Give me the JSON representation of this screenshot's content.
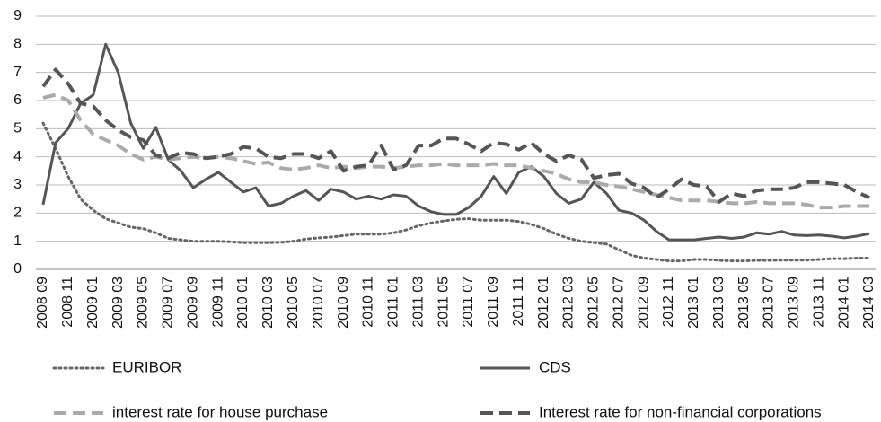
{
  "chart_data": {
    "type": "line",
    "categories": [
      "2008 09",
      null,
      "2008 11",
      null,
      "2009 01",
      null,
      "2009 03",
      null,
      "2009 05",
      null,
      "2009 07",
      null,
      "2009 09",
      null,
      "2009 11",
      null,
      "2010 01",
      null,
      "2010 03",
      null,
      "2010 05",
      null,
      "2010 07",
      null,
      "2010 09",
      null,
      "2010 11",
      null,
      "2011 01",
      null,
      "2011 03",
      null,
      "2011 05",
      null,
      "2011 07",
      null,
      "2011 09",
      null,
      "2011 11",
      null,
      "2012 01",
      null,
      "2012 03",
      null,
      "2012 05",
      null,
      "2012 07",
      null,
      "2012 09",
      null,
      "2012 11",
      null,
      "2013 01",
      null,
      "2013 03",
      null,
      "2013 05",
      null,
      "2013 07",
      null,
      "2013 09",
      null,
      "2013 11",
      null,
      "2014 01",
      null,
      "2014 03"
    ],
    "series": [
      {
        "name": "EURIBOR",
        "color": "#666666",
        "style": "dotted",
        "values": [
          5.2,
          4.3,
          3.3,
          2.5,
          2.1,
          1.8,
          1.65,
          1.5,
          1.45,
          1.3,
          1.1,
          1.05,
          1.0,
          1.0,
          1.0,
          0.98,
          0.95,
          0.95,
          0.95,
          0.96,
          1.0,
          1.08,
          1.12,
          1.15,
          1.2,
          1.25,
          1.25,
          1.25,
          1.3,
          1.4,
          1.55,
          1.65,
          1.72,
          1.78,
          1.8,
          1.75,
          1.75,
          1.75,
          1.7,
          1.6,
          1.45,
          1.25,
          1.1,
          1.0,
          0.95,
          0.9,
          0.7,
          0.5,
          0.4,
          0.35,
          0.3,
          0.3,
          0.35,
          0.35,
          0.32,
          0.3,
          0.3,
          0.32,
          0.32,
          0.33,
          0.33,
          0.33,
          0.35,
          0.38,
          0.38,
          0.4,
          0.4
        ]
      },
      {
        "name": "CDS",
        "color": "#555555",
        "style": "solid",
        "values": [
          2.3,
          4.5,
          5.0,
          5.9,
          6.2,
          8.0,
          7.0,
          5.2,
          4.3,
          5.05,
          3.9,
          3.5,
          2.9,
          3.2,
          3.45,
          3.1,
          2.75,
          2.9,
          2.25,
          2.35,
          2.6,
          2.8,
          2.45,
          2.85,
          2.75,
          2.5,
          2.6,
          2.5,
          2.65,
          2.6,
          2.25,
          2.05,
          1.95,
          1.95,
          2.2,
          2.6,
          3.3,
          2.7,
          3.45,
          3.65,
          3.3,
          2.7,
          2.35,
          2.5,
          3.1,
          2.7,
          2.1,
          2.0,
          1.75,
          1.35,
          1.05,
          1.05,
          1.05,
          1.1,
          1.15,
          1.1,
          1.15,
          1.3,
          1.25,
          1.35,
          1.22,
          1.2,
          1.22,
          1.18,
          1.12,
          1.18,
          1.27
        ]
      },
      {
        "name": "interest rate for house purchase",
        "color": "#aaaaaa",
        "style": "dashed",
        "values": [
          6.1,
          6.2,
          6.0,
          5.3,
          4.8,
          4.6,
          4.4,
          4.1,
          3.9,
          4.0,
          3.9,
          3.95,
          4.0,
          3.95,
          4.0,
          3.95,
          3.85,
          3.75,
          3.8,
          3.6,
          3.55,
          3.6,
          3.7,
          3.6,
          3.65,
          3.6,
          3.65,
          3.65,
          3.6,
          3.65,
          3.7,
          3.7,
          3.75,
          3.7,
          3.7,
          3.7,
          3.75,
          3.7,
          3.7,
          3.6,
          3.5,
          3.4,
          3.2,
          3.1,
          3.1,
          3.0,
          2.95,
          2.85,
          2.75,
          2.65,
          2.55,
          2.45,
          2.45,
          2.45,
          2.4,
          2.35,
          2.35,
          2.4,
          2.35,
          2.35,
          2.35,
          2.3,
          2.2,
          2.2,
          2.25,
          2.25,
          2.25
        ]
      },
      {
        "name": "Interest rate for non-financial corporations",
        "color": "#555555",
        "style": "dashed",
        "values": [
          6.5,
          7.1,
          6.6,
          5.9,
          5.8,
          5.3,
          4.95,
          4.7,
          4.6,
          4.05,
          3.95,
          4.15,
          4.1,
          3.95,
          4.0,
          4.1,
          4.35,
          4.3,
          4.0,
          3.95,
          4.1,
          4.1,
          3.95,
          4.2,
          3.5,
          3.65,
          3.7,
          4.4,
          3.55,
          3.7,
          4.4,
          4.4,
          4.65,
          4.65,
          4.45,
          4.2,
          4.5,
          4.45,
          4.25,
          4.5,
          4.1,
          3.85,
          4.05,
          3.9,
          3.25,
          3.35,
          3.4,
          3.05,
          2.9,
          2.55,
          2.85,
          3.2,
          3.0,
          2.95,
          2.4,
          2.7,
          2.6,
          2.8,
          2.85,
          2.85,
          2.9,
          3.1,
          3.1,
          3.05,
          3.0,
          2.75,
          2.55
        ]
      }
    ],
    "ylim": [
      0,
      9
    ],
    "yticks": [
      0,
      1,
      2,
      3,
      4,
      5,
      6,
      7,
      8,
      9
    ],
    "grid": true
  }
}
